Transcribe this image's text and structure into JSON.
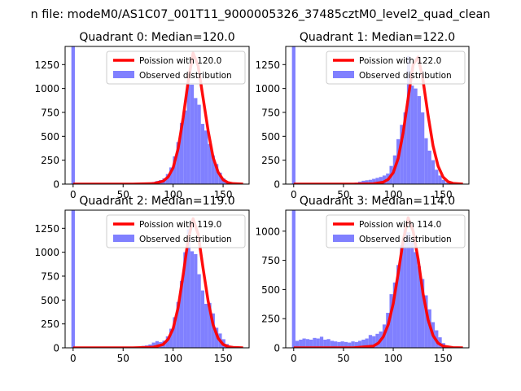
{
  "figure": {
    "suptitle": "n file: modeM0/AS1C07_001T11_9000005326_37485cztM0_level2_quad_clean"
  },
  "chart_data": [
    {
      "type": "bar",
      "title": "Quadrant 0: Median=120.0",
      "median": 120.0,
      "xlim": [
        -8,
        176
      ],
      "ylim": [
        0,
        1440
      ],
      "xticks": [
        0,
        50,
        100,
        150
      ],
      "yticks": [
        0,
        250,
        500,
        750,
        1000,
        1250
      ],
      "legend_position": "top-right",
      "series": [
        {
          "name": "Poission with 120.0",
          "kind": "line",
          "color": "#ff0000",
          "lambda": 120.0,
          "peak": 1370,
          "x": [
            0,
            30,
            60,
            80,
            90,
            95,
            100,
            105,
            110,
            115,
            120,
            125,
            130,
            135,
            140,
            145,
            150,
            155,
            160,
            170
          ],
          "y": [
            0,
            0,
            0,
            5,
            30,
            75,
            170,
            370,
            690,
            1070,
            1370,
            1240,
            900,
            560,
            280,
            125,
            45,
            15,
            5,
            0
          ]
        },
        {
          "name": "Observed distribution",
          "kind": "histogram",
          "color": "#8080ff",
          "bin_width": 3.5,
          "x": [
            0,
            70,
            73.5,
            77,
            80.5,
            84,
            87.5,
            91,
            94.5,
            98,
            101.5,
            105,
            108.5,
            112,
            115.5,
            119,
            122.5,
            126,
            129.5,
            133,
            136.5,
            140,
            143.5,
            147,
            150.5,
            154,
            157.5
          ],
          "y": [
            1440,
            8,
            10,
            14,
            22,
            32,
            42,
            60,
            105,
            175,
            290,
            440,
            640,
            770,
            1040,
            1040,
            900,
            830,
            630,
            560,
            420,
            300,
            210,
            120,
            60,
            20,
            8
          ]
        }
      ]
    },
    {
      "type": "bar",
      "title": "Quadrant 1: Median=122.0",
      "median": 122.0,
      "xlim": [
        -8,
        176
      ],
      "ylim": [
        0,
        1440
      ],
      "xticks": [
        0,
        50,
        100,
        150
      ],
      "yticks": [
        0,
        250,
        500,
        750,
        1000,
        1250
      ],
      "legend_position": "top-right",
      "series": [
        {
          "name": "Poission with 122.0",
          "kind": "line",
          "color": "#ff0000",
          "lambda": 122.0,
          "peak": 1360,
          "x": [
            0,
            30,
            60,
            80,
            90,
            95,
            100,
            105,
            110,
            115,
            120,
            125,
            130,
            135,
            140,
            145,
            150,
            155,
            160,
            170
          ],
          "y": [
            0,
            0,
            0,
            3,
            20,
            50,
            120,
            270,
            540,
            900,
            1250,
            1330,
            1080,
            720,
            400,
            190,
            75,
            25,
            8,
            0
          ]
        },
        {
          "name": "Observed distribution",
          "kind": "histogram",
          "color": "#8080ff",
          "bin_width": 3.5,
          "x": [
            0,
            63,
            66.5,
            70,
            73.5,
            77,
            80.5,
            84,
            87.5,
            91,
            94.5,
            98,
            101.5,
            105,
            108.5,
            112,
            115.5,
            119,
            122.5,
            126,
            129.5,
            133,
            136.5,
            140,
            143.5,
            147,
            150.5,
            154,
            157.5
          ],
          "y": [
            1440,
            15,
            25,
            35,
            40,
            45,
            55,
            65,
            75,
            90,
            110,
            190,
            300,
            470,
            620,
            750,
            1340,
            1030,
            1000,
            920,
            750,
            480,
            350,
            250,
            150,
            90,
            45,
            15,
            5
          ]
        }
      ]
    },
    {
      "type": "bar",
      "title": "Quadrant 2: Median=119.0",
      "median": 119.0,
      "xlim": [
        -8,
        176
      ],
      "ylim": [
        0,
        1440
      ],
      "xticks": [
        0,
        50,
        100,
        150
      ],
      "yticks": [
        0,
        250,
        500,
        750,
        1000,
        1250
      ],
      "legend_position": "top-right",
      "series": [
        {
          "name": "Poission with 119.0",
          "kind": "line",
          "color": "#ff0000",
          "lambda": 119.0,
          "peak": 1350,
          "x": [
            0,
            30,
            60,
            80,
            90,
            95,
            100,
            105,
            110,
            115,
            120,
            125,
            130,
            135,
            140,
            145,
            150,
            155,
            160,
            170
          ],
          "y": [
            0,
            0,
            0,
            6,
            35,
            90,
            200,
            420,
            760,
            1130,
            1350,
            1190,
            830,
            490,
            240,
            100,
            35,
            12,
            4,
            0
          ]
        },
        {
          "name": "Observed distribution",
          "kind": "histogram",
          "color": "#8080ff",
          "bin_width": 3.5,
          "x": [
            0,
            70,
            73.5,
            77,
            80.5,
            84,
            87.5,
            91,
            94.5,
            98,
            101.5,
            105,
            108.5,
            112,
            115.5,
            119,
            122.5,
            126,
            129.5,
            133,
            136.5,
            140,
            143.5,
            147,
            150.5,
            154,
            157.5,
            161,
            164.5
          ],
          "y": [
            1440,
            20,
            25,
            35,
            55,
            70,
            60,
            75,
            120,
            200,
            320,
            480,
            700,
            1000,
            1240,
            1010,
            980,
            770,
            600,
            460,
            470,
            360,
            210,
            150,
            90,
            40,
            20,
            10,
            5
          ]
        }
      ]
    },
    {
      "type": "bar",
      "title": "Quadrant 3: Median=114.0",
      "median": 114.0,
      "xlim": [
        -8,
        176
      ],
      "ylim": [
        0,
        1180
      ],
      "xticks": [
        0,
        50,
        100,
        150
      ],
      "yticks": [
        0,
        250,
        500,
        750,
        1000
      ],
      "legend_position": "top-right",
      "series": [
        {
          "name": "Poission with 114.0",
          "kind": "line",
          "color": "#ff0000",
          "lambda": 114.0,
          "peak": 1115,
          "x": [
            0,
            30,
            60,
            80,
            85,
            90,
            95,
            100,
            105,
            110,
            115,
            120,
            125,
            130,
            135,
            140,
            145,
            150,
            160,
            170
          ],
          "y": [
            0,
            0,
            0,
            15,
            40,
            95,
            200,
            380,
            640,
            920,
            1115,
            1000,
            760,
            460,
            240,
            105,
            40,
            15,
            2,
            0
          ]
        },
        {
          "name": "Observed distribution",
          "kind": "histogram",
          "color": "#8080ff",
          "bin_width": 3.5,
          "x": [
            0,
            3.5,
            7,
            10.5,
            14,
            17.5,
            21,
            24.5,
            28,
            31.5,
            35,
            38.5,
            42,
            45.5,
            49,
            52.5,
            56,
            59.5,
            63,
            66.5,
            70,
            73.5,
            77,
            80.5,
            84,
            87.5,
            91,
            94.5,
            98,
            101.5,
            105,
            108.5,
            112,
            115.5,
            119,
            122.5,
            126,
            129.5,
            133,
            136.5,
            140,
            143.5,
            147,
            150.5
          ],
          "y": [
            1180,
            60,
            70,
            80,
            75,
            70,
            85,
            80,
            95,
            70,
            75,
            60,
            55,
            50,
            55,
            50,
            45,
            55,
            50,
            60,
            70,
            80,
            110,
            100,
            120,
            140,
            200,
            300,
            460,
            560,
            710,
            880,
            1020,
            990,
            910,
            820,
            700,
            590,
            450,
            330,
            220,
            150,
            90,
            40
          ]
        }
      ]
    }
  ]
}
